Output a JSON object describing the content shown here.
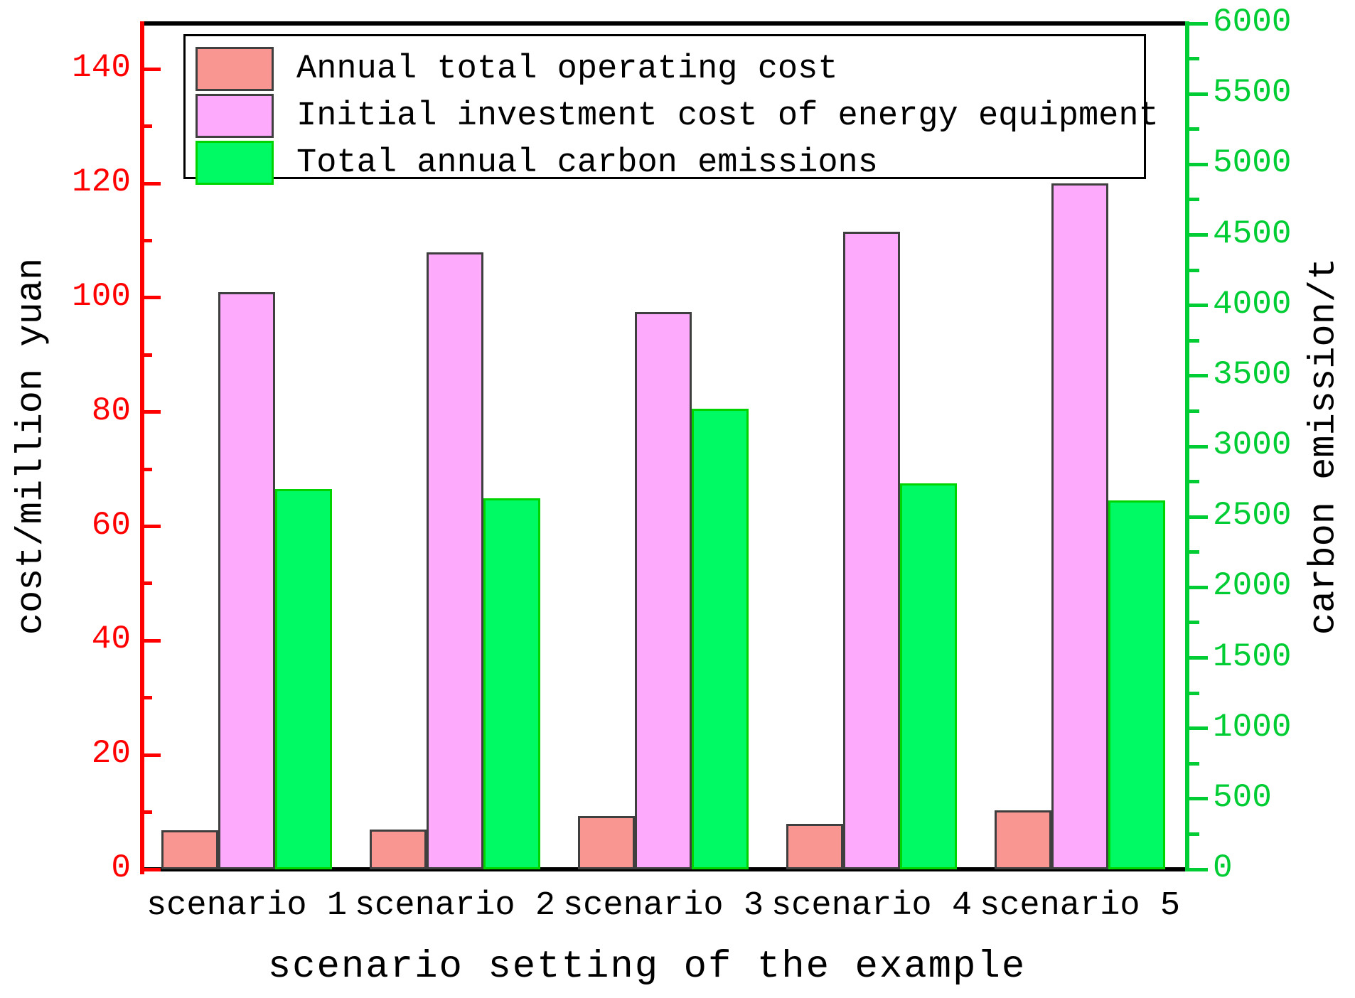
{
  "chart_data": {
    "type": "bar",
    "title": "",
    "xlabel": "scenario setting of the example",
    "categories": [
      "scenario 1",
      "scenario 2",
      "scenario 3",
      "scenario 4",
      "scenario 5"
    ],
    "left_axis": {
      "label": "cost/million yuan",
      "color": "#ff0000",
      "min": 0,
      "max": 148,
      "major_ticks": [
        0,
        20,
        40,
        60,
        80,
        100,
        120,
        140
      ],
      "minor_ticks": [
        10,
        30,
        50,
        70,
        90,
        110,
        130
      ]
    },
    "right_axis": {
      "label": "carbon emission/t",
      "color": "#00cc33",
      "min": 0,
      "max": 6000,
      "major_ticks": [
        0,
        500,
        1000,
        1500,
        2000,
        2500,
        3000,
        3500,
        4000,
        4500,
        5000,
        5500,
        6000
      ],
      "minor_ticks": [
        250,
        750,
        1250,
        1750,
        2250,
        2750,
        3250,
        3750,
        4250,
        4750,
        5250,
        5750
      ]
    },
    "series": [
      {
        "name": "Annual total operating cost",
        "axis": "left",
        "fill": "#fa9691",
        "edge": "#3f3f3f",
        "values": [
          6.8,
          7.0,
          9.3,
          8.0,
          10.3
        ]
      },
      {
        "name": "Initial investment cost of energy equipment",
        "axis": "left",
        "fill": "#fdaafd",
        "edge": "#3f3f3f",
        "values": [
          101,
          108,
          97.5,
          111.5,
          120
        ]
      },
      {
        "name": "Total annual carbon emissions",
        "axis": "right",
        "fill": "#00fa64",
        "edge": "#00d400",
        "values": [
          2700,
          2630,
          3265,
          2740,
          2615
        ]
      }
    ],
    "legend_position": "top-left-inside",
    "grid": false,
    "frame_colors": {
      "top": "#000000",
      "bottom": "#000000",
      "left": "#ff0000",
      "right": "#00cc33"
    }
  }
}
